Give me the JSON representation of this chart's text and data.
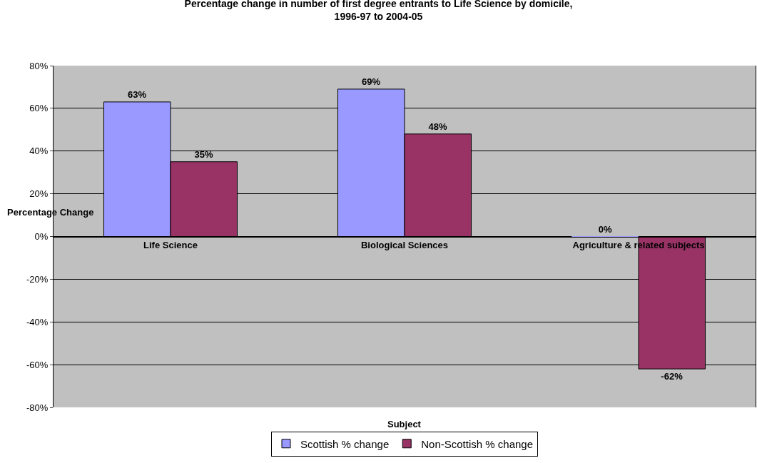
{
  "chart_data": {
    "type": "bar",
    "title": "Percentage change in number of first degree entrants to Life Science by domicile, 1996-97 to 2004-05",
    "xlabel": "Subject",
    "ylabel": "Percentage Change",
    "categories": [
      "Life Science",
      "Biological Sciences",
      "Agriculture & related subjects"
    ],
    "series": [
      {
        "name": "Scottish % change",
        "color": "#9999ff",
        "values": [
          63,
          69,
          0
        ],
        "value_labels": [
          "63%",
          "69%",
          "0%"
        ]
      },
      {
        "name": "Non-Scottish % change",
        "color": "#993366",
        "values": [
          35,
          48,
          -62
        ],
        "value_labels": [
          "35%",
          "48%",
          "-62%"
        ]
      }
    ],
    "ylim": [
      -80,
      80
    ],
    "yticks": [
      {
        "value": -80,
        "label": "-80%"
      },
      {
        "value": -60,
        "label": "-60%"
      },
      {
        "value": -40,
        "label": "-40%"
      },
      {
        "value": -20,
        "label": "-20%"
      },
      {
        "value": 0,
        "label": "0%"
      },
      {
        "value": 20,
        "label": "20%"
      },
      {
        "value": 40,
        "label": "40%"
      },
      {
        "value": 60,
        "label": "60%"
      },
      {
        "value": 80,
        "label": "80%"
      }
    ],
    "grid": "y",
    "legend": "bottom"
  }
}
